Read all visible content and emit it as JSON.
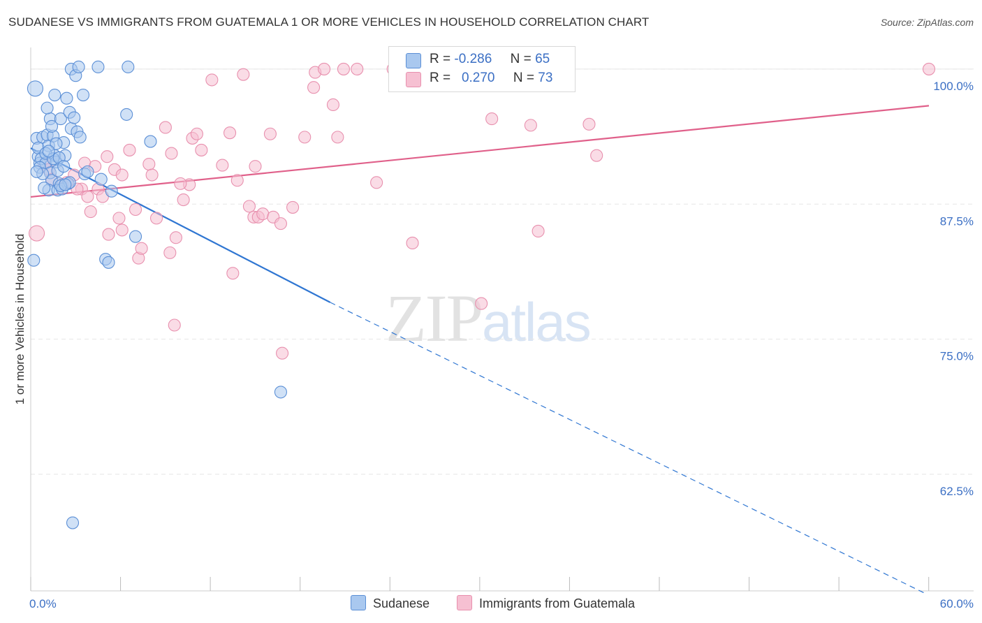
{
  "header": {
    "title": "SUDANESE VS IMMIGRANTS FROM GUATEMALA 1 OR MORE VEHICLES IN HOUSEHOLD CORRELATION CHART",
    "source": "Source: ZipAtlas.com"
  },
  "watermark": {
    "zip": "ZIP",
    "atlas": "atlas"
  },
  "legend": {
    "rows": [
      {
        "r_label": "R =",
        "r_value": "-0.286",
        "n_label": "N =",
        "n_value": "65"
      },
      {
        "r_label": "R =",
        "r_value": "0.270",
        "n_label": "N =",
        "n_value": "73"
      }
    ]
  },
  "bottom_legend": {
    "series1": "Sudanese",
    "series2": "Immigrants from Guatemala"
  },
  "colors": {
    "sudanese_fill": "#a9c8ef",
    "sudanese_stroke": "#5b8fd6",
    "sudanese_line": "#2f76d2",
    "guatemala_fill": "#f6c0d2",
    "guatemala_stroke": "#e890ae",
    "guatemala_line": "#e0608a",
    "tick_label": "#3b6fc4",
    "grid": "#e6e6e6"
  },
  "chart_data": {
    "type": "scatter",
    "title": "SUDANESE VS IMMIGRANTS FROM GUATEMALA 1 OR MORE VEHICLES IN HOUSEHOLD CORRELATION CHART",
    "xlabel": "",
    "ylabel": "1 or more Vehicles in Household",
    "xlim": [
      0,
      63
    ],
    "ylim": [
      0.517,
      1.02
    ],
    "x_tick_labels": [
      "0.0%",
      "60.0%"
    ],
    "y_ticks": [
      1.0,
      0.875,
      0.75,
      0.625
    ],
    "y_tick_labels": [
      "100.0%",
      "87.5%",
      "75.0%",
      "62.5%"
    ],
    "grid": true,
    "legend_position": "top-center",
    "series": [
      {
        "name": "Sudanese",
        "r": -0.286,
        "n": 65,
        "trend": {
          "x": [
            0.0,
            20.0
          ],
          "y": [
            0.9268,
            0.7841
          ],
          "dashed_to": [
            59.8,
            0.5143
          ]
        },
        "points": [
          [
            0.3,
            0.982
          ],
          [
            0.5,
            0.919
          ],
          [
            0.4,
            0.936
          ],
          [
            0.5,
            0.927
          ],
          [
            0.6,
            0.913
          ],
          [
            0.8,
            0.937
          ],
          [
            0.7,
            0.917
          ],
          [
            1.0,
            0.913
          ],
          [
            1.1,
            0.939
          ],
          [
            1.2,
            0.929
          ],
          [
            1.3,
            0.904
          ],
          [
            1.4,
            0.897
          ],
          [
            1.2,
            0.888
          ],
          [
            1.3,
            0.954
          ],
          [
            1.1,
            0.964
          ],
          [
            1.5,
            0.938
          ],
          [
            1.6,
            0.92
          ],
          [
            1.7,
            0.914
          ],
          [
            1.8,
            0.906
          ],
          [
            1.9,
            0.894
          ],
          [
            1.6,
            0.976
          ],
          [
            1.8,
            0.888
          ],
          [
            2.0,
            0.954
          ],
          [
            2.2,
            0.932
          ],
          [
            2.3,
            0.92
          ],
          [
            2.4,
            0.973
          ],
          [
            2.5,
            0.894
          ],
          [
            2.6,
            0.96
          ],
          [
            2.7,
            0.945
          ],
          [
            2.1,
            0.889
          ],
          [
            2.9,
            0.955
          ],
          [
            3.1,
            0.942
          ],
          [
            3.3,
            0.937
          ],
          [
            2.7,
            1.0
          ],
          [
            3.0,
            0.994
          ],
          [
            3.2,
            1.002
          ],
          [
            3.5,
            0.976
          ],
          [
            3.6,
            0.903
          ],
          [
            4.5,
            1.002
          ],
          [
            4.7,
            0.898
          ],
          [
            5.0,
            0.824
          ],
          [
            5.2,
            0.821
          ],
          [
            5.4,
            0.887
          ],
          [
            6.4,
            0.958
          ],
          [
            6.5,
            1.002
          ],
          [
            7.0,
            0.845
          ],
          [
            8.0,
            0.933
          ],
          [
            16.7,
            0.701
          ],
          [
            2.8,
            0.58
          ],
          [
            0.6,
            0.909
          ],
          [
            0.8,
            0.903
          ],
          [
            1.0,
            0.922
          ],
          [
            1.5,
            0.917
          ],
          [
            1.9,
            0.918
          ],
          [
            2.2,
            0.91
          ],
          [
            2.6,
            0.895
          ],
          [
            1.4,
            0.947
          ],
          [
            1.7,
            0.931
          ],
          [
            0.4,
            0.905
          ],
          [
            0.2,
            0.823
          ],
          [
            0.9,
            0.89
          ],
          [
            3.8,
            0.905
          ],
          [
            2.0,
            0.892
          ],
          [
            1.2,
            0.924
          ],
          [
            2.3,
            0.893
          ]
        ]
      },
      {
        "name": "Immigrants from Guatemala",
        "r": 0.27,
        "n": 73,
        "trend": {
          "x": [
            0.0,
            60.0
          ],
          "y": [
            0.8817,
            0.9661
          ]
        },
        "points": [
          [
            0.4,
            0.848
          ],
          [
            0.9,
            0.912
          ],
          [
            1.2,
            0.907
          ],
          [
            1.4,
            0.898
          ],
          [
            2.1,
            0.893
          ],
          [
            2.9,
            0.902
          ],
          [
            3.4,
            0.889
          ],
          [
            3.6,
            0.913
          ],
          [
            3.8,
            0.882
          ],
          [
            4.0,
            0.868
          ],
          [
            4.3,
            0.91
          ],
          [
            4.5,
            0.889
          ],
          [
            4.8,
            0.882
          ],
          [
            5.1,
            0.919
          ],
          [
            5.2,
            0.847
          ],
          [
            5.6,
            0.907
          ],
          [
            5.9,
            0.862
          ],
          [
            6.1,
            0.851
          ],
          [
            6.6,
            0.925
          ],
          [
            7.0,
            0.87
          ],
          [
            7.2,
            0.825
          ],
          [
            7.4,
            0.834
          ],
          [
            7.9,
            0.912
          ],
          [
            8.1,
            0.902
          ],
          [
            8.4,
            0.862
          ],
          [
            9.0,
            0.946
          ],
          [
            9.3,
            0.83
          ],
          [
            9.4,
            0.922
          ],
          [
            9.7,
            0.844
          ],
          [
            10.2,
            0.879
          ],
          [
            10.6,
            0.893
          ],
          [
            10.8,
            0.936
          ],
          [
            11.1,
            0.94
          ],
          [
            11.4,
            0.925
          ],
          [
            12.1,
            0.99
          ],
          [
            12.8,
            0.911
          ],
          [
            13.3,
            0.941
          ],
          [
            13.5,
            0.811
          ],
          [
            13.8,
            0.897
          ],
          [
            14.2,
            0.995
          ],
          [
            14.6,
            0.873
          ],
          [
            14.9,
            0.863
          ],
          [
            15.0,
            0.91
          ],
          [
            15.2,
            0.863
          ],
          [
            15.5,
            0.866
          ],
          [
            16.0,
            0.94
          ],
          [
            16.2,
            0.863
          ],
          [
            16.7,
            0.857
          ],
          [
            17.5,
            0.872
          ],
          [
            18.3,
            0.937
          ],
          [
            18.9,
            0.983
          ],
          [
            19.0,
            0.997
          ],
          [
            19.6,
            1.0
          ],
          [
            20.2,
            0.967
          ],
          [
            20.5,
            0.937
          ],
          [
            20.9,
            1.0
          ],
          [
            21.8,
            1.0
          ],
          [
            23.1,
            0.895
          ],
          [
            24.2,
            1.0
          ],
          [
            25.5,
            0.839
          ],
          [
            30.1,
            0.783
          ],
          [
            30.8,
            0.954
          ],
          [
            33.4,
            0.948
          ],
          [
            33.9,
            0.85
          ],
          [
            37.3,
            0.949
          ],
          [
            37.8,
            0.92
          ],
          [
            60.0,
            1.0
          ],
          [
            6.1,
            0.902
          ],
          [
            9.6,
            0.763
          ],
          [
            16.8,
            0.737
          ],
          [
            2.4,
            0.895
          ],
          [
            3.1,
            0.889
          ],
          [
            10.0,
            0.894
          ]
        ]
      }
    ]
  }
}
